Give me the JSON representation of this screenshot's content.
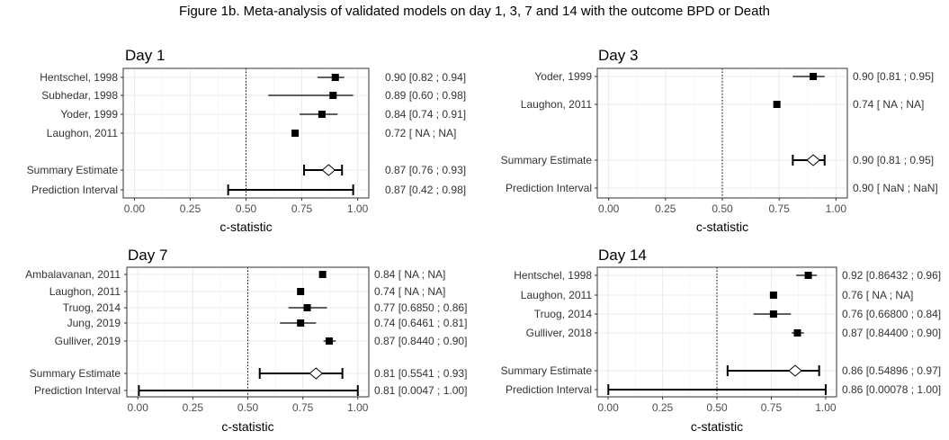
{
  "figure_title": "Figure 1b. Meta-analysis of validated models on day 1, 3, 7 and 14 with the outcome BPD or Death",
  "colors": {
    "panel_border": "#333333",
    "grid": "#ebebeb",
    "marker": "#000000",
    "diamond_fill": "#ffffff"
  },
  "chart_data": [
    {
      "type": "forest",
      "title": "Day 1",
      "xlabel": "c-statistic",
      "xlim": [
        -0.05,
        1.05
      ],
      "xticks": [
        "0.00",
        "0.25",
        "0.50",
        "0.75",
        "1.00"
      ],
      "reference_line": 0.5,
      "rows": [
        {
          "label": "Hentschel, 1998",
          "kind": "study",
          "est": 0.9,
          "lo": 0.82,
          "hi": 0.94,
          "text": "0.90 [0.82 ; 0.94]"
        },
        {
          "label": "Subhedar, 1998",
          "kind": "study",
          "est": 0.89,
          "lo": 0.6,
          "hi": 0.98,
          "text": "0.89 [0.60 ; 0.98]"
        },
        {
          "label": "Yoder, 1999",
          "kind": "study",
          "est": 0.84,
          "lo": 0.74,
          "hi": 0.91,
          "text": "0.84 [0.74 ; 0.91]"
        },
        {
          "label": "Laughon, 2011",
          "kind": "study",
          "est": 0.72,
          "lo": null,
          "hi": null,
          "text": "0.72 [  NA ;   NA]"
        },
        {
          "label": "Summary Estimate",
          "kind": "summary",
          "est": 0.87,
          "lo": 0.76,
          "hi": 0.93,
          "text": "0.87 [0.76 ; 0.93]"
        },
        {
          "label": "Prediction Interval",
          "kind": "prediction",
          "est": 0.87,
          "lo": 0.42,
          "hi": 0.98,
          "text": "0.87 [0.42 ; 0.98]"
        }
      ]
    },
    {
      "type": "forest",
      "title": "Day 3",
      "xlabel": "c-statistic",
      "xlim": [
        -0.05,
        1.05
      ],
      "xticks": [
        "0.00",
        "0.25",
        "0.50",
        "0.75",
        "1.00"
      ],
      "reference_line": 0.5,
      "rows": [
        {
          "label": "Yoder, 1999",
          "kind": "study",
          "est": 0.9,
          "lo": 0.81,
          "hi": 0.95,
          "text": "0.90 [0.81 ; 0.95]"
        },
        {
          "label": "Laughon, 2011",
          "kind": "study",
          "est": 0.74,
          "lo": null,
          "hi": null,
          "text": "0.74 [  NA ;   NA]"
        },
        {
          "label": "Summary Estimate",
          "kind": "summary",
          "est": 0.9,
          "lo": 0.81,
          "hi": 0.95,
          "text": "0.90 [0.81 ; 0.95]"
        },
        {
          "label": "Prediction Interval",
          "kind": "prediction",
          "est": 0.9,
          "lo": null,
          "hi": null,
          "text": "0.90 [ NaN ;  NaN]"
        }
      ]
    },
    {
      "type": "forest",
      "title": "Day 7",
      "xlabel": "c-statistic",
      "xlim": [
        -0.05,
        1.05
      ],
      "xticks": [
        "0.00",
        "0.25",
        "0.50",
        "0.75",
        "1.00"
      ],
      "reference_line": 0.5,
      "rows": [
        {
          "label": "Ambalavanan, 2011",
          "kind": "study",
          "est": 0.84,
          "lo": null,
          "hi": null,
          "text": "0.84 [    NA ;   NA]"
        },
        {
          "label": "Laughon, 2011",
          "kind": "study",
          "est": 0.74,
          "lo": null,
          "hi": null,
          "text": "0.74 [    NA ;   NA]"
        },
        {
          "label": "Truog, 2014",
          "kind": "study",
          "est": 0.77,
          "lo": 0.685,
          "hi": 0.86,
          "text": "0.77 [0.6850 ; 0.86]"
        },
        {
          "label": "Jung, 2019",
          "kind": "study",
          "est": 0.74,
          "lo": 0.6461,
          "hi": 0.81,
          "text": "0.74 [0.6461 ; 0.81]"
        },
        {
          "label": "Gulliver, 2019",
          "kind": "study",
          "est": 0.87,
          "lo": 0.844,
          "hi": 0.9,
          "text": "0.87 [0.8440 ; 0.90]"
        },
        {
          "label": "Summary Estimate",
          "kind": "summary",
          "est": 0.81,
          "lo": 0.5541,
          "hi": 0.93,
          "text": "0.81 [0.5541 ; 0.93]"
        },
        {
          "label": "Prediction Interval",
          "kind": "prediction",
          "est": 0.81,
          "lo": 0.0047,
          "hi": 1.0,
          "text": "0.81 [0.0047 ; 1.00]"
        }
      ]
    },
    {
      "type": "forest",
      "title": "Day 14",
      "xlabel": "c-statistic",
      "xlim": [
        -0.05,
        1.05
      ],
      "xticks": [
        "0.00",
        "0.25",
        "0.50",
        "0.75",
        "1.00"
      ],
      "reference_line": 0.5,
      "rows": [
        {
          "label": "Hentschel, 1998",
          "kind": "study",
          "est": 0.92,
          "lo": 0.86432,
          "hi": 0.96,
          "text": "0.92 [0.86432 ; 0.96]"
        },
        {
          "label": "Laughon, 2011",
          "kind": "study",
          "est": 0.76,
          "lo": null,
          "hi": null,
          "text": "0.76 [     NA ;   NA]"
        },
        {
          "label": "Truog, 2014",
          "kind": "study",
          "est": 0.76,
          "lo": 0.668,
          "hi": 0.84,
          "text": "0.76 [0.66800 ; 0.84]"
        },
        {
          "label": "Gulliver, 2018",
          "kind": "study",
          "est": 0.87,
          "lo": 0.844,
          "hi": 0.9,
          "text": "0.87 [0.84400 ; 0.90]"
        },
        {
          "label": "Summary Estimate",
          "kind": "summary",
          "est": 0.86,
          "lo": 0.54896,
          "hi": 0.97,
          "text": "0.86 [0.54896 ; 0.97]"
        },
        {
          "label": "Prediction Interval",
          "kind": "prediction",
          "est": 0.86,
          "lo": 0.00078,
          "hi": 1.0,
          "text": "0.86 [0.00078 ; 1.00]"
        }
      ]
    }
  ]
}
